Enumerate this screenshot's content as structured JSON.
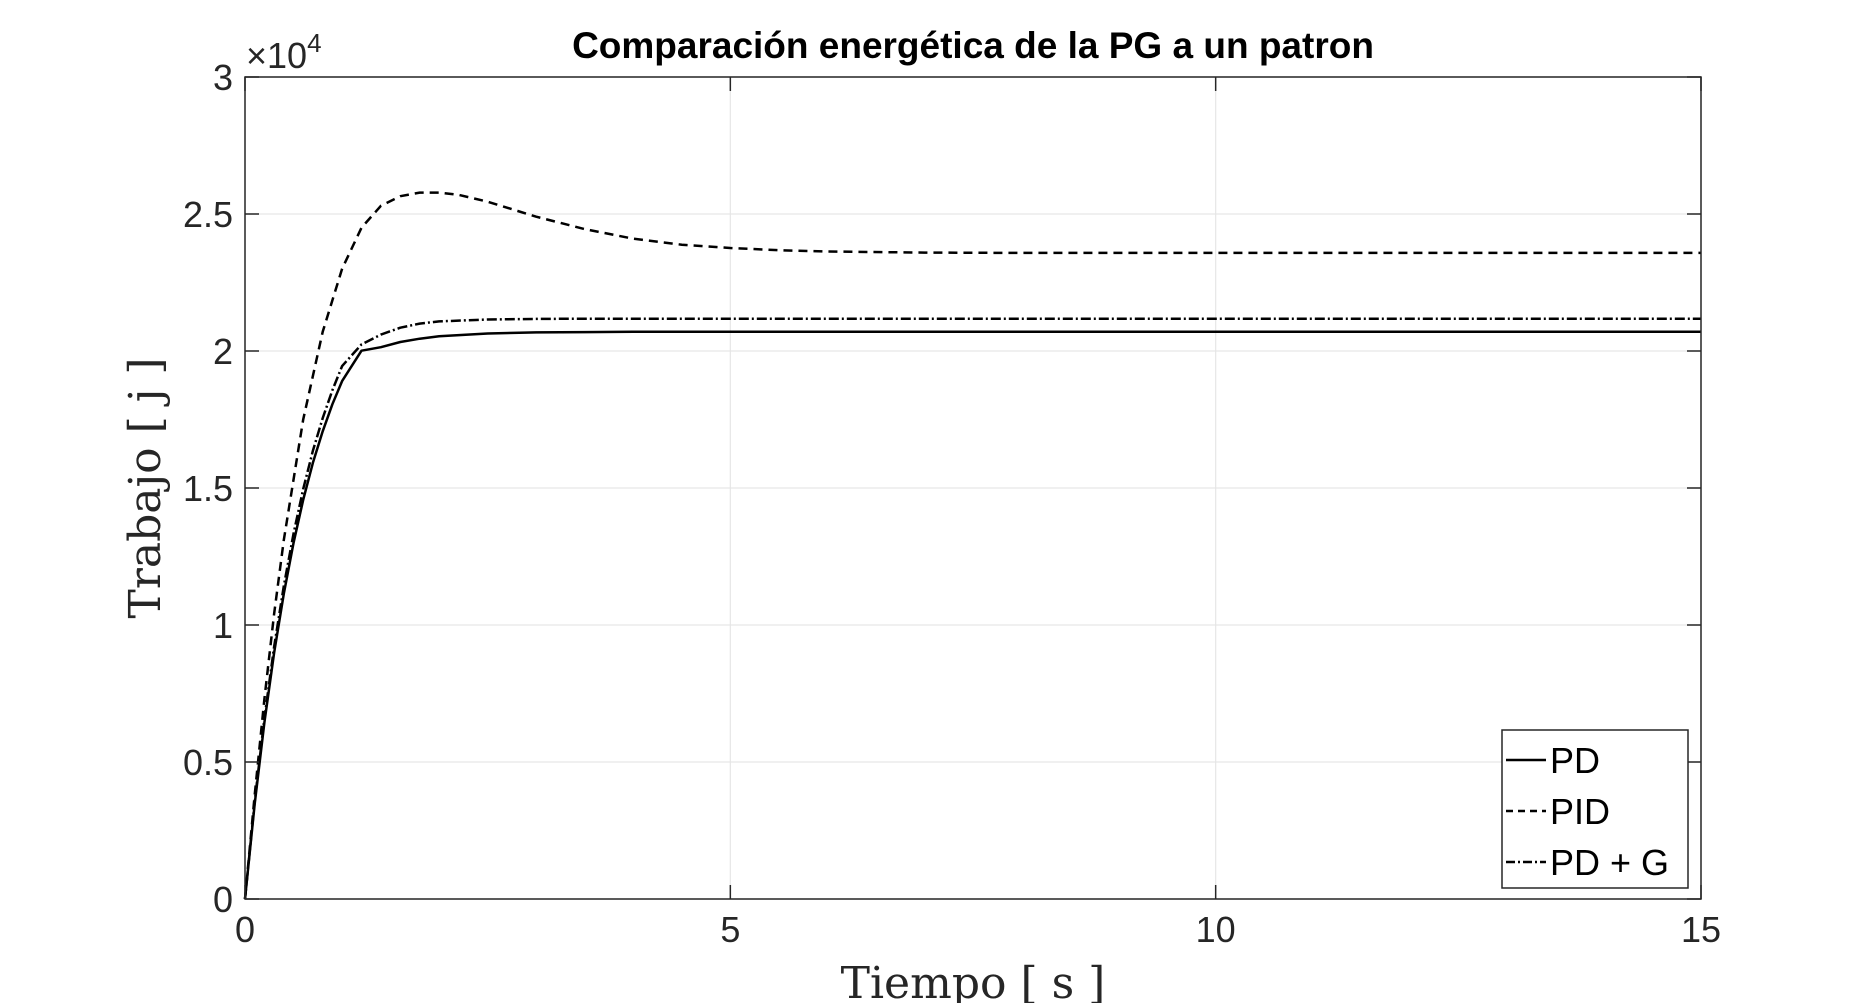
{
  "chart_data": {
    "type": "line",
    "title": "Comparación energética de la PG a un patron",
    "xlabel": "Tiempo [ s ]",
    "ylabel": "Trabajo [ j ]",
    "xlim": [
      0,
      15
    ],
    "ylim": [
      0,
      30000
    ],
    "xticks": [
      "0",
      "5",
      "10",
      "15"
    ],
    "yticks": [
      "0",
      "0.5",
      "1",
      "1.5",
      "2",
      "2.5",
      "3"
    ],
    "yscale_multiplier": "×10",
    "yscale_exponent": "4",
    "grid": true,
    "legend_position": "bottom-right",
    "series": [
      {
        "name": "PD",
        "style": "solid",
        "x": [
          0,
          0.1,
          0.2,
          0.3,
          0.4,
          0.5,
          0.6,
          0.7,
          0.8,
          0.9,
          1.0,
          1.2,
          1.4,
          1.6,
          1.8,
          2.0,
          2.5,
          3.0,
          3.5,
          4.0,
          5.0,
          6.0,
          8.0,
          10.0,
          12.0,
          15.0
        ],
        "y": [
          0,
          3470,
          6440,
          8980,
          11140,
          12990,
          14570,
          15920,
          17070,
          18060,
          18900,
          20010,
          20140,
          20330,
          20450,
          20540,
          20640,
          20680,
          20690,
          20700,
          20700,
          20700,
          20700,
          20700,
          20700,
          20700
        ]
      },
      {
        "name": "PID",
        "style": "dashed",
        "x": [
          0,
          0.1,
          0.2,
          0.3,
          0.4,
          0.6,
          0.8,
          1.0,
          1.2,
          1.4,
          1.6,
          1.8,
          2.0,
          2.2,
          2.5,
          3.0,
          3.5,
          4.0,
          4.5,
          5.0,
          5.5,
          6.0,
          7.0,
          8.0,
          10.0,
          12.0,
          15.0
        ],
        "y": [
          0,
          3800,
          7300,
          10400,
          13100,
          17500,
          20700,
          23000,
          24500,
          25300,
          25650,
          25780,
          25780,
          25700,
          25450,
          24900,
          24450,
          24100,
          23880,
          23760,
          23680,
          23630,
          23590,
          23580,
          23580,
          23580,
          23580
        ]
      },
      {
        "name": "PD + G",
        "style": "dashdot",
        "x": [
          0,
          0.1,
          0.2,
          0.3,
          0.4,
          0.5,
          0.6,
          0.7,
          0.8,
          0.9,
          1.0,
          1.2,
          1.4,
          1.6,
          1.8,
          2.0,
          2.5,
          3.0,
          3.5,
          4.0,
          5.0,
          6.0,
          8.0,
          10.0,
          12.0,
          15.0
        ],
        "y": [
          0,
          3550,
          6590,
          9200,
          11420,
          13330,
          14960,
          16360,
          17550,
          18570,
          19450,
          20240,
          20600,
          20850,
          21000,
          21080,
          21150,
          21170,
          21180,
          21180,
          21180,
          21180,
          21180,
          21180,
          21180,
          21180
        ]
      }
    ]
  }
}
